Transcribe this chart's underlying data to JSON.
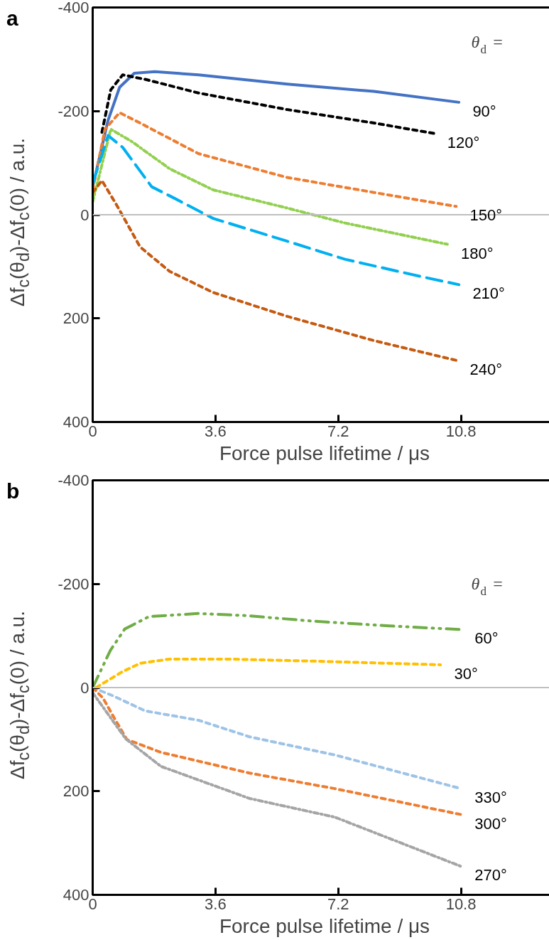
{
  "chart_data": [
    {
      "type": "line",
      "title": "a",
      "xlabel": "Force pulse lifetime / μs",
      "ylabel": "Δf$_{c}$(θ$_{d}$)-Δf$_{c}$(0) / a.u.",
      "legend_title": "θ$_{d}$ =",
      "xlim": [
        0,
        13.6
      ],
      "xticks": [
        0,
        3.6,
        7.2,
        10.8
      ],
      "ylim": [
        400,
        -400
      ],
      "yticks": [
        -400,
        -200,
        0,
        200,
        400
      ],
      "grid": false,
      "ref_lines": [
        {
          "axis": "y",
          "value": 0,
          "label": null,
          "color": "#bfbfbf"
        }
      ],
      "series": [
        {
          "name": "90°",
          "color": "#4472c4",
          "line_style": "solid",
          "x": [
            0,
            0.45,
            0.79,
            1.22,
            1.82,
            3.1,
            5.7,
            8.25,
            10.74
          ],
          "values": [
            -54,
            -182,
            -246,
            -273,
            -276,
            -270,
            -252,
            -238,
            -217
          ]
        },
        {
          "name": "120°",
          "color": "#000000",
          "line_style": "dashed",
          "x": [
            0.27,
            0.53,
            0.88,
            1.56,
            3.1,
            5.7,
            8.25,
            10.0
          ],
          "values": [
            -159,
            -241,
            -270,
            -261,
            -235,
            -203,
            -177,
            -157
          ]
        },
        {
          "name": "150°",
          "color": "#ed7d31",
          "line_style": "dashed",
          "x": [
            0,
            0.36,
            0.79,
            1.39,
            3.1,
            5.7,
            8.25,
            10.66
          ],
          "values": [
            -48,
            -165,
            -197,
            -177,
            -118,
            -72,
            -43,
            -16
          ]
        },
        {
          "name": "180°",
          "color": "#92d050",
          "line_style": "dashdot",
          "x": [
            0,
            0.53,
            1.13,
            2.25,
            3.53,
            5.7,
            7.4,
            10.4
          ],
          "values": [
            -25,
            -165,
            -142,
            -89,
            -48,
            -13,
            16,
            57
          ]
        },
        {
          "name": "210°",
          "color": "#00b0f0",
          "line_style": "longdash",
          "x": [
            0,
            0.45,
            0.88,
            1.73,
            2.42,
            3.53,
            5.7,
            7.4,
            9.54,
            10.74
          ],
          "values": [
            -60,
            -153,
            -130,
            -54,
            -31,
            7,
            51,
            86,
            118,
            135
          ]
        },
        {
          "name": "240°",
          "color": "#c55a11",
          "line_style": "dashed",
          "x": [
            0,
            0.27,
            0.7,
            1.39,
            2.25,
            3.53,
            5.7,
            8.25,
            10.66
          ],
          "values": [
            -43,
            -66,
            -19,
            62,
            109,
            150,
            196,
            243,
            281
          ]
        }
      ]
    },
    {
      "type": "line",
      "title": "b",
      "xlabel": "Force pulse lifetime / μs",
      "ylabel": "Δf$_{c}$(θ$_{d}$)-Δf$_{c}$(0) / a.u.",
      "legend_title": "θ$_{d}$ =",
      "xlim": [
        0,
        13.6
      ],
      "xticks": [
        0,
        3.6,
        7.2,
        10.8
      ],
      "ylim": [
        400,
        -400
      ],
      "yticks": [
        -400,
        -200,
        0,
        200,
        400
      ],
      "grid": false,
      "ref_lines": [
        {
          "axis": "y",
          "value": 0,
          "label": null,
          "color": "#bfbfbf"
        }
      ],
      "series": [
        {
          "name": "60°",
          "color": "#70ad47",
          "line_style": "dashdotdot",
          "x": [
            0,
            0.52,
            0.94,
            1.65,
            3.1,
            4.47,
            6.5,
            8.7,
            10.8
          ],
          "values": [
            0,
            -72,
            -113,
            -137,
            -143,
            -139,
            -128,
            -119,
            -112
          ]
        },
        {
          "name": "30°",
          "color": "#ffc000",
          "line_style": "dashed",
          "x": [
            0.1,
            0.88,
            1.4,
            2.25,
            4.0,
            6.5,
            10.2
          ],
          "values": [
            0,
            -31,
            -47,
            -55,
            -55,
            -51,
            -44
          ]
        },
        {
          "name": "330°",
          "color": "#9dc3e6",
          "line_style": "dashed",
          "x": [
            0,
            0.6,
            1.54,
            3.1,
            4.6,
            7.1,
            10.8
          ],
          "values": [
            0,
            16,
            45,
            63,
            95,
            130,
            195
          ]
        },
        {
          "name": "300°",
          "color": "#ed7d31",
          "line_style": "dashed",
          "x": [
            0,
            0.3,
            0.6,
            1.0,
            2.0,
            4.6,
            7.1,
            10.8
          ],
          "values": [
            0,
            20,
            55,
            100,
            125,
            165,
            195,
            245
          ]
        },
        {
          "name": "270°",
          "color": "#a5a5a5",
          "line_style": "dashdot",
          "x": [
            0,
            0.97,
            2.0,
            4.6,
            7.1,
            10.8
          ],
          "values": [
            10,
            99,
            152,
            214,
            250,
            345
          ]
        }
      ]
    }
  ]
}
